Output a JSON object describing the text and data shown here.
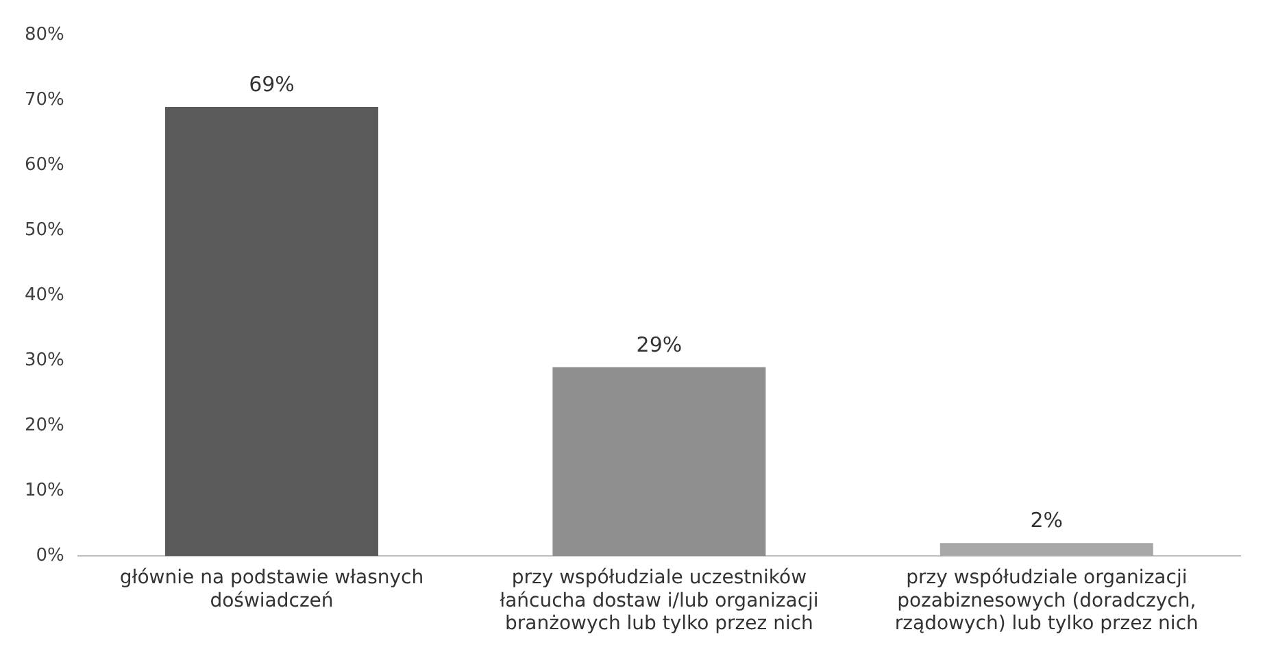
{
  "chart_data": {
    "type": "bar",
    "categories": [
      "głównie na podstawie własnych doświadczeń",
      "przy współudziale uczestników łańcucha dostaw i/lub organizacji branżowych lub tylko przez nich",
      "przy współudziale organizacji pozabiznesowych (doradczych, rządowych) lub tylko przez nich"
    ],
    "values": [
      69,
      29,
      2
    ],
    "colors": [
      "#5a5a5a",
      "#8f8f8f",
      "#a8a8a8"
    ],
    "value_labels": [
      "69%",
      "29%",
      "2%"
    ],
    "ylim": [
      0,
      80
    ],
    "yticks": [
      {
        "value": 0,
        "label": "0%"
      },
      {
        "value": 10,
        "label": "10%"
      },
      {
        "value": 20,
        "label": "20%"
      },
      {
        "value": 30,
        "label": "30%"
      },
      {
        "value": 40,
        "label": "40%"
      },
      {
        "value": 50,
        "label": "50%"
      },
      {
        "value": 60,
        "label": "60%"
      },
      {
        "value": 70,
        "label": "70%"
      },
      {
        "value": 80,
        "label": "80%"
      }
    ],
    "grid": false,
    "legend": false
  }
}
